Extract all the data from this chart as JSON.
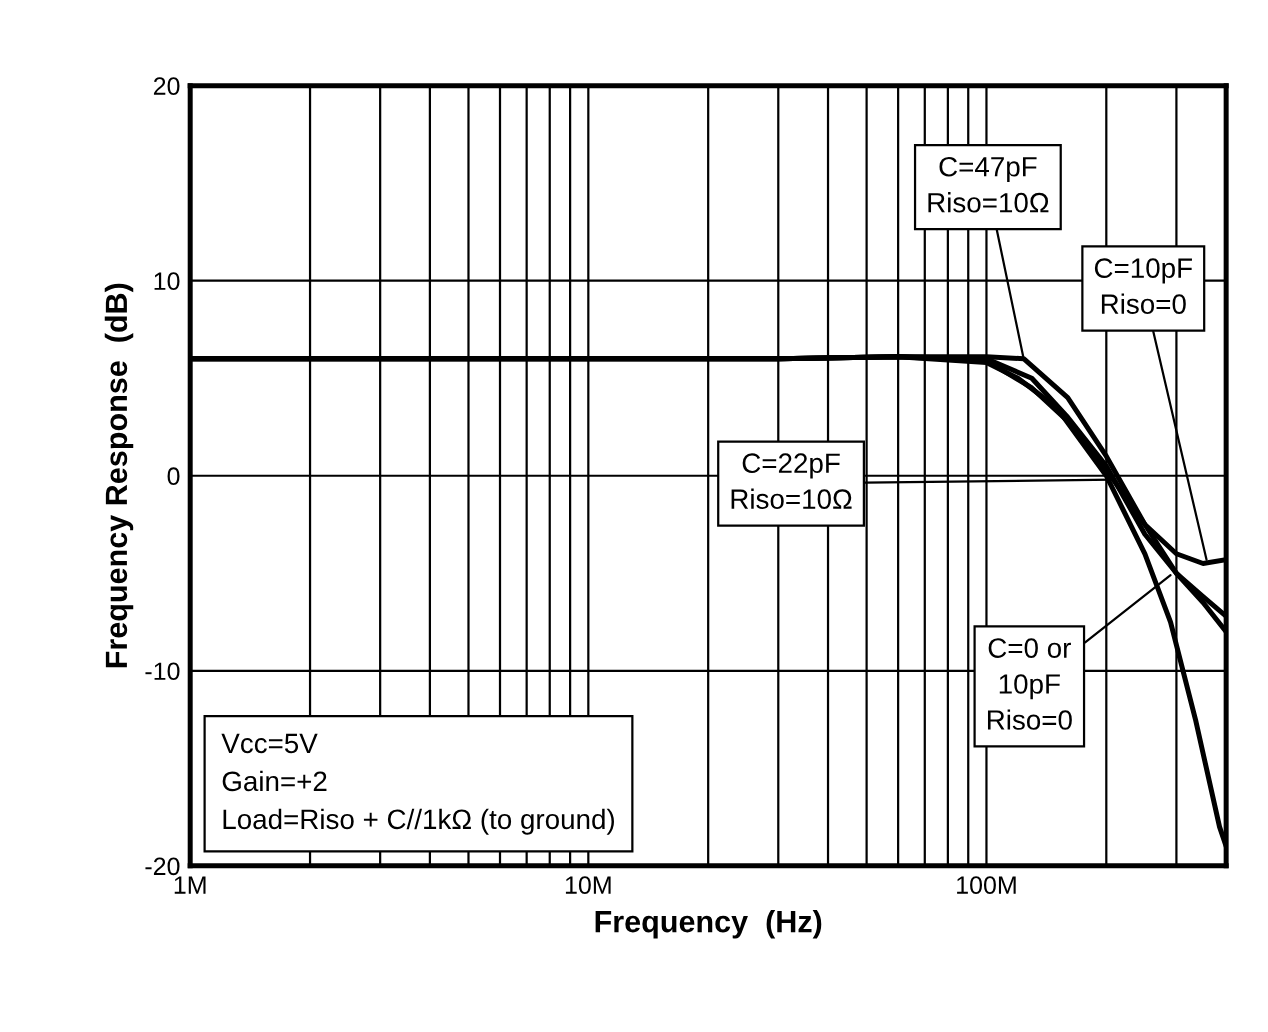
{
  "chart_data": {
    "type": "line",
    "xlabel": "Frequency  (Hz)",
    "ylabel": "Frequency Response  (dB)",
    "log": "x",
    "xlim": [
      1000000,
      400000000
    ],
    "ylim": [
      -20,
      20
    ],
    "xticks": [
      {
        "value": 1000000,
        "label": "1M"
      },
      {
        "value": 2000000,
        "label": null
      },
      {
        "value": 3000000,
        "label": null
      },
      {
        "value": 4000000,
        "label": null
      },
      {
        "value": 5000000,
        "label": null
      },
      {
        "value": 6000000,
        "label": null
      },
      {
        "value": 7000000,
        "label": null
      },
      {
        "value": 8000000,
        "label": null
      },
      {
        "value": 9000000,
        "label": null
      },
      {
        "value": 10000000,
        "label": "10M"
      },
      {
        "value": 20000000,
        "label": null
      },
      {
        "value": 30000000,
        "label": null
      },
      {
        "value": 40000000,
        "label": null
      },
      {
        "value": 50000000,
        "label": null
      },
      {
        "value": 60000000,
        "label": null
      },
      {
        "value": 70000000,
        "label": null
      },
      {
        "value": 80000000,
        "label": null
      },
      {
        "value": 90000000,
        "label": null
      },
      {
        "value": 100000000,
        "label": "100M"
      },
      {
        "value": 200000000,
        "label": null
      },
      {
        "value": 300000000,
        "label": null
      }
    ],
    "yticks": [
      -20,
      -10,
      0,
      10,
      20
    ],
    "grid": true,
    "marker": "none",
    "line_style": "solid",
    "series": [
      {
        "color": "#000000",
        "x": [
          1000000,
          3000000,
          10000000,
          30000000,
          60000000,
          100000000,
          130000000,
          160000000,
          180000000,
          200000000,
          250000000,
          300000000,
          350000000,
          400000000
        ],
        "values": [
          6,
          6,
          6,
          6,
          6.1,
          5.9,
          4.5,
          2.8,
          1.5,
          0.3,
          -2.5,
          -4,
          -4.5,
          -4.3
        ]
      },
      {
        "color": "#000000",
        "x": [
          1000000,
          3000000,
          10000000,
          30000000,
          60000000,
          100000000,
          124000000,
          160000000,
          200000000,
          250000000,
          300000000,
          350000000,
          400000000
        ],
        "values": [
          6,
          6,
          6,
          6,
          6.1,
          6.1,
          6,
          4,
          1,
          -2.5,
          -5,
          -6.5,
          -8
        ]
      },
      {
        "color": "#000000",
        "x": [
          1000000,
          3000000,
          10000000,
          30000000,
          60000000,
          100000000,
          130000000,
          160000000,
          200000000,
          250000000,
          300000000,
          350000000,
          400000000
        ],
        "values": [
          6,
          6,
          6,
          6,
          6.1,
          6,
          5,
          3,
          0.5,
          -3,
          -5,
          -6.2,
          -7.2
        ]
      },
      {
        "color": "#000000",
        "x": [
          1000000,
          3000000,
          10000000,
          30000000,
          60000000,
          100000000,
          120000000,
          150000000,
          200000000,
          250000000,
          290000000,
          335000000,
          385000000,
          400000000
        ],
        "values": [
          6,
          6,
          6,
          6,
          6.1,
          5.8,
          5,
          3.5,
          0,
          -4,
          -7.5,
          -12.5,
          -18,
          -19
        ]
      }
    ],
    "annotations": [
      {
        "text": "C=47pF\nRiso=10Ω",
        "x": 124000000,
        "y": 6
      },
      {
        "text": "C=10pF\nRiso=0",
        "x": 357000000,
        "y": -4.3
      },
      {
        "text": "C=22pF\nRiso=10Ω",
        "x": 209000000,
        "y": -0.2
      },
      {
        "text": "C=0 or\n10pF\nRiso=0",
        "x": 290000000,
        "y": -5.1
      },
      "Vcc=5V\nGain=+2\nLoad=Riso + C//1kΩ (to ground)"
    ]
  }
}
